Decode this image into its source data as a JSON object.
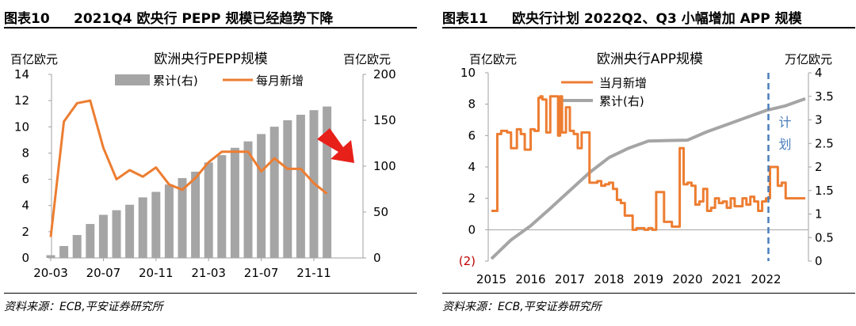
{
  "left": {
    "fig_label": "图表10",
    "fig_title": "2021Q4 欧央行 PEPP 规模已经趋势下降",
    "source": "资料来源：ECB,平安证券研究所"
  },
  "right": {
    "fig_label": "图表11",
    "fig_title": "欧央行计划 2022Q2、Q3 小幅增加 APP 规模",
    "source": "资料来源：ECB,平安证券研究所",
    "plan_label": [
      "计",
      "划"
    ]
  },
  "colors": {
    "orange": "#ED7D31",
    "gray": "#A5A5A5",
    "dashed": "#4A7EBB",
    "axis": "#A0A0A0",
    "neg": "#C00000"
  },
  "chart_data": [
    {
      "type": "bar",
      "title": "欧洲央行PEPP规模",
      "ylabel": "百亿欧元",
      "y2label": "百亿欧元",
      "ylim": [
        0,
        14
      ],
      "y2lim": [
        0,
        200
      ],
      "yticks": [
        "0",
        "2",
        "4",
        "6",
        "8",
        "10",
        "12",
        "14"
      ],
      "y2ticks": [
        "0",
        "50",
        "100",
        "150",
        "200"
      ],
      "xticklabels": [
        "20-03",
        "20-07",
        "20-11",
        "21-03",
        "21-07",
        "21-11"
      ],
      "legend": [
        "累计(右)",
        "每月新增"
      ],
      "legend_position": "top",
      "grid": false,
      "categories": [
        "20-03",
        "20-04",
        "20-05",
        "20-06",
        "20-07",
        "20-08",
        "20-09",
        "20-10",
        "20-11",
        "20-12",
        "21-01",
        "21-02",
        "21-03",
        "21-04",
        "21-05",
        "21-06",
        "21-07",
        "21-08",
        "21-09",
        "21-10",
        "21-11",
        "21-12"
      ],
      "series": [
        {
          "name": "累计(右)",
          "type": "bar",
          "axis": "right",
          "values": [
            3,
            13,
            25,
            37,
            47,
            52,
            58,
            66,
            72,
            80,
            87,
            94,
            104,
            112,
            120,
            127,
            135,
            143,
            150,
            156,
            161,
            165
          ]
        },
        {
          "name": "每月新增",
          "type": "line",
          "axis": "left",
          "values": [
            1.6,
            10.4,
            11.8,
            12.0,
            8.4,
            6.0,
            6.7,
            6.2,
            6.9,
            5.6,
            5.2,
            6.1,
            7.3,
            8.1,
            8.1,
            8.1,
            6.6,
            7.6,
            6.8,
            6.8,
            5.7,
            4.9
          ]
        }
      ],
      "annotation": "red arrow at upper right indicating downward trend"
    },
    {
      "type": "line",
      "title": "欧洲央行APP规模",
      "ylabel": "百亿欧元",
      "y2label": "万亿欧元",
      "ylim": [
        -2,
        10
      ],
      "y2lim": [
        0,
        4
      ],
      "yticks": [
        "(2)",
        "0",
        "2",
        "4",
        "6",
        "8",
        "10"
      ],
      "y2ticks": [
        "0",
        "0.5",
        "1",
        "1.5",
        "2",
        "2.5",
        "3",
        "3.5",
        "4"
      ],
      "xticklabels": [
        "2015",
        "2016",
        "2017",
        "2018",
        "2019",
        "2020",
        "2021",
        "2022"
      ],
      "legend": [
        "当月新增",
        "累计(右)"
      ],
      "legend_position": "top-left",
      "grid": false,
      "series": [
        {
          "name": "当月新增",
          "axis": "left",
          "x": [
            2015.0,
            2015.15,
            2015.25,
            2015.4,
            2015.5,
            2015.65,
            2015.75,
            2015.85,
            2016.0,
            2016.1,
            2016.2,
            2016.25,
            2016.3,
            2016.4,
            2016.5,
            2016.6,
            2016.7,
            2016.75,
            2016.8,
            2016.9,
            2017.0,
            2017.1,
            2017.2,
            2017.3,
            2017.4,
            2017.5,
            2017.6,
            2017.7,
            2017.8,
            2017.9,
            2018.0,
            2018.1,
            2018.2,
            2018.3,
            2018.4,
            2018.5,
            2018.6,
            2018.7,
            2018.8,
            2018.9,
            2019.0,
            2019.1,
            2019.2,
            2019.4,
            2019.6,
            2019.8,
            2019.9,
            2020.0,
            2020.1,
            2020.2,
            2020.3,
            2020.4,
            2020.5,
            2020.6,
            2020.7,
            2020.8,
            2020.9,
            2021.0,
            2021.1,
            2021.2,
            2021.3,
            2021.4,
            2021.5,
            2021.6,
            2021.7,
            2021.8,
            2021.9,
            2022.0,
            2022.1,
            2022.2,
            2022.3,
            2022.4,
            2022.5,
            2022.6,
            2022.7,
            2022.8,
            2022.9,
            2023.0
          ],
          "y": [
            1.2,
            6.1,
            6.3,
            6.2,
            5.2,
            6.4,
            6.1,
            5.1,
            6.4,
            6.3,
            8.4,
            8.5,
            8.3,
            6.2,
            8.5,
            8.5,
            6.0,
            8.5,
            6.2,
            7.8,
            6.3,
            6.1,
            5.2,
            6.2,
            6.2,
            3.0,
            3.0,
            3.1,
            2.8,
            2.9,
            3.0,
            2.6,
            1.9,
            1.7,
            0.9,
            0.9,
            0.0,
            0.1,
            0.1,
            0.0,
            0.1,
            0.0,
            2.4,
            0.5,
            0.2,
            5.2,
            2.9,
            3.0,
            2.8,
            1.6,
            1.8,
            2.6,
            1.2,
            1.4,
            2.0,
            1.7,
            1.8,
            1.4,
            2.0,
            1.5,
            1.5,
            2.0,
            1.6,
            2.1,
            1.8,
            1.2,
            1.8,
            2.0,
            4.0,
            4.0,
            2.8,
            3.0,
            2.0,
            2.0,
            2.0,
            2.0,
            2.0,
            2.0
          ]
        },
        {
          "name": "累计(右)",
          "axis": "right",
          "x": [
            2015.0,
            2015.5,
            2016.0,
            2016.5,
            2017.0,
            2017.5,
            2018.0,
            2018.5,
            2019.0,
            2019.5,
            2020.0,
            2020.5,
            2021.0,
            2021.5,
            2022.0,
            2022.5,
            2023.0
          ],
          "y": [
            0.05,
            0.45,
            0.75,
            1.12,
            1.5,
            1.88,
            2.2,
            2.4,
            2.55,
            2.56,
            2.57,
            2.75,
            2.9,
            3.05,
            3.2,
            3.3,
            3.45
          ]
        }
      ],
      "vline": {
        "x": 2022.0,
        "label": "计划"
      }
    }
  ]
}
